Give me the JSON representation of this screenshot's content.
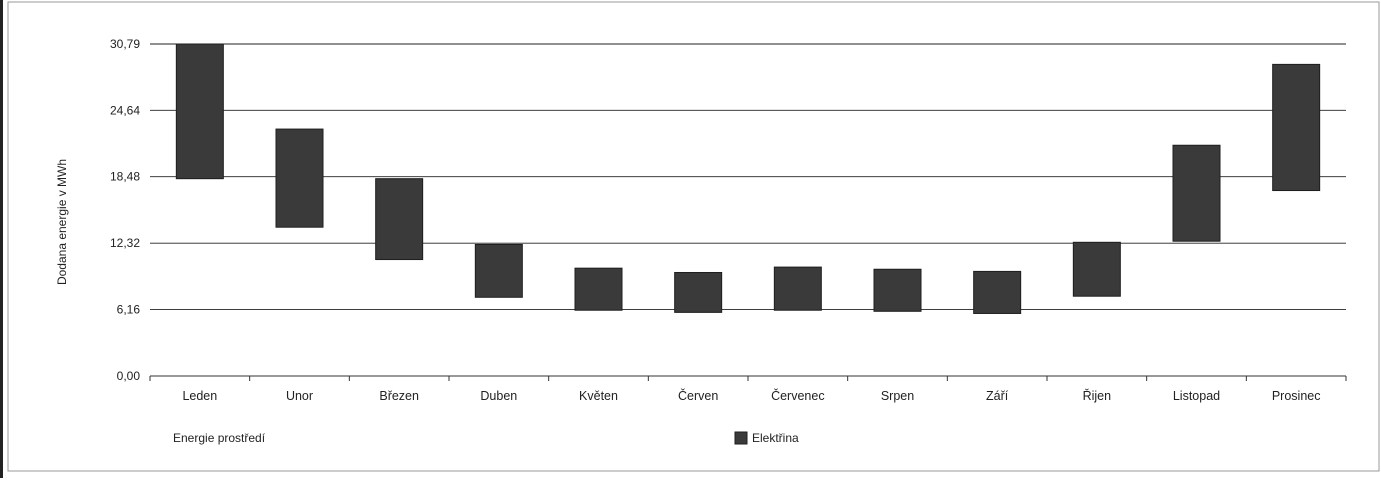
{
  "chart_data": {
    "type": "bar",
    "ylabel": "Dodana energie v MWh",
    "yticks": [
      "0,00",
      "6,16",
      "12,32",
      "18,48",
      "24,64",
      "30,79"
    ],
    "ylim": [
      0,
      30.79
    ],
    "categories": [
      "Leden",
      "Unor",
      "Březen",
      "Duben",
      "Květen",
      "Červen",
      "Červenec",
      "Srpen",
      "Září",
      "Řijen",
      "Listopad",
      "Prosinec"
    ],
    "series": [
      {
        "name": "Elektřina",
        "low": [
          18.3,
          13.8,
          10.8,
          7.3,
          6.1,
          5.9,
          6.1,
          6.0,
          5.8,
          7.4,
          12.5,
          17.2
        ],
        "high": [
          30.79,
          22.9,
          18.3,
          12.2,
          10.0,
          9.6,
          10.1,
          9.9,
          9.7,
          12.4,
          21.4,
          28.9
        ]
      }
    ],
    "legend": {
      "left_label": "Energie prostředí",
      "series_label": "Elektřina"
    },
    "grid": true,
    "legend_placement": "bottom",
    "colors": {
      "bar": "#3a3a3a",
      "bar_edge": "#1e1e1e",
      "grid": "#222222",
      "frame": "#999999"
    }
  }
}
